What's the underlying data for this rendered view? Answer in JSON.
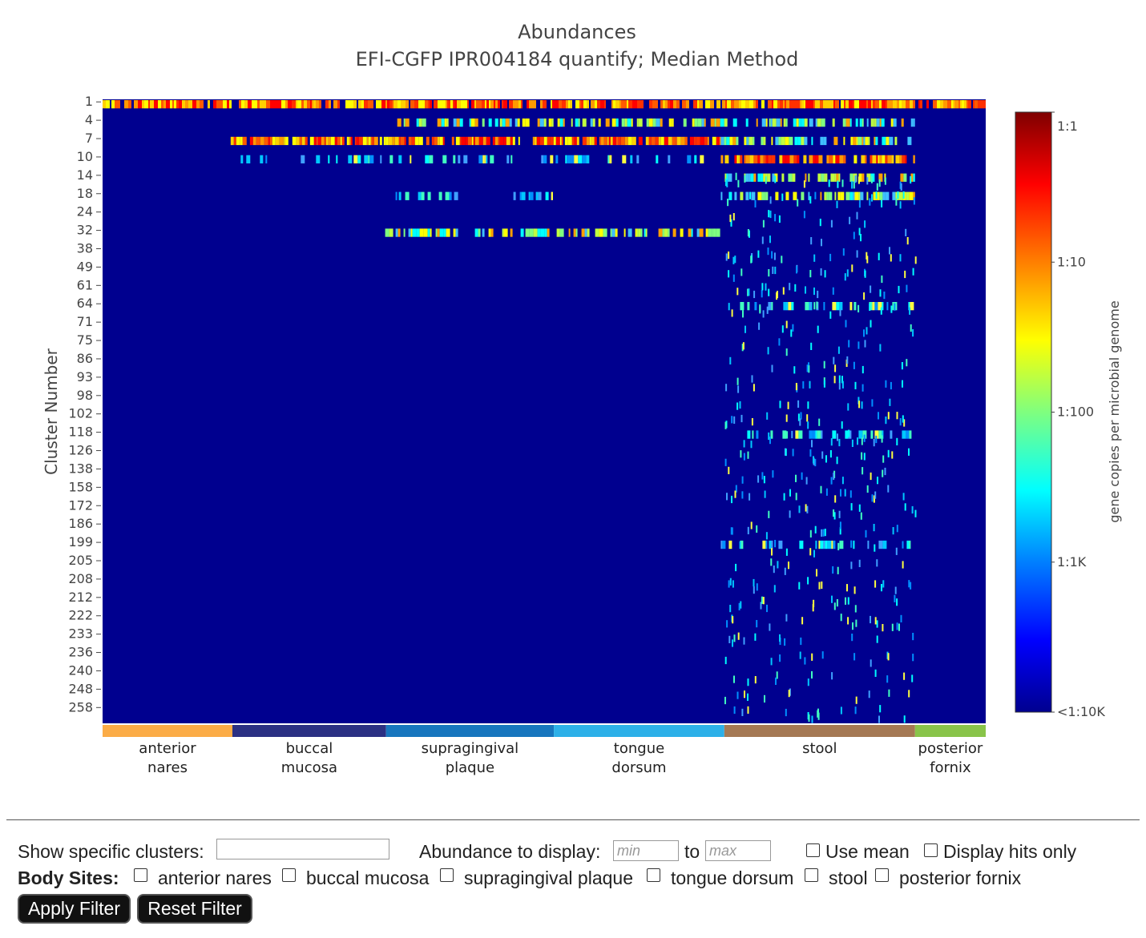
{
  "chart_data": {
    "type": "heatmap",
    "title": "Abundances",
    "subtitle": "EFI-CGFP IPR004184 quantify; Median Method",
    "ylabel": "Cluster Number",
    "y_tick_labels": [
      "1",
      "4",
      "7",
      "10",
      "14",
      "18",
      "24",
      "32",
      "38",
      "49",
      "61",
      "64",
      "71",
      "75",
      "86",
      "93",
      "98",
      "102",
      "118",
      "126",
      "138",
      "158",
      "172",
      "186",
      "199",
      "205",
      "208",
      "212",
      "222",
      "233",
      "236",
      "240",
      "248",
      "258"
    ],
    "colorbar": {
      "title": "gene copies per microbial genome",
      "ticks": [
        "1:1",
        "1:10",
        "1:100",
        "1:1K",
        "<1:10K"
      ],
      "tick_values": [
        1,
        0.1,
        0.01,
        0.001,
        0.0001
      ],
      "colorscale": "jet",
      "colors": [
        "#7f0000",
        "#ff0000",
        "#ff7f00",
        "#ffff00",
        "#7fff7f",
        "#00ffff",
        "#007fff",
        "#0000ff",
        "#00008f"
      ]
    },
    "background_color": "#00008f",
    "body_sites": [
      {
        "label": "anterior nares",
        "line1": "anterior",
        "line2": "nares",
        "color": "#fbac47",
        "start": 0.0,
        "end": 0.147
      },
      {
        "label": "buccal mucosa",
        "line1": "buccal",
        "line2": "mucosa",
        "color": "#2b3083",
        "start": 0.147,
        "end": 0.321
      },
      {
        "label": "supragingival plaque",
        "line1": "supragingival",
        "line2": "plaque",
        "color": "#1776be",
        "start": 0.321,
        "end": 0.511
      },
      {
        "label": "tongue dorsum",
        "line1": "tongue",
        "line2": "dorsum",
        "color": "#2db0e8",
        "start": 0.511,
        "end": 0.704
      },
      {
        "label": "stool",
        "line1": "stool",
        "line2": "",
        "color": "#a57954",
        "start": 0.704,
        "end": 0.92
      },
      {
        "label": "posterior fornix",
        "line1": "posterior",
        "line2": "fornix",
        "color": "#89c44a",
        "start": 0.92,
        "end": 1.0
      }
    ],
    "row_features": [
      {
        "cluster": "1",
        "segments": [
          [
            0.0,
            1.0,
            "high"
          ]
        ]
      },
      {
        "cluster": "4",
        "segments": [
          [
            0.33,
            0.92,
            "mid"
          ]
        ]
      },
      {
        "cluster": "7",
        "segments": [
          [
            0.145,
            0.7,
            "high"
          ],
          [
            0.7,
            0.92,
            "mid"
          ]
        ]
      },
      {
        "cluster": "10",
        "segments": [
          [
            0.15,
            0.7,
            "low"
          ],
          [
            0.7,
            0.92,
            "high"
          ]
        ]
      },
      {
        "cluster": "14",
        "segments": [
          [
            0.7,
            0.92,
            "mid"
          ]
        ]
      },
      {
        "cluster": "18",
        "segments": [
          [
            0.32,
            0.51,
            "low"
          ],
          [
            0.7,
            0.92,
            "mid"
          ]
        ]
      },
      {
        "cluster": "32",
        "segments": [
          [
            0.32,
            0.7,
            "mid"
          ]
        ]
      },
      {
        "cluster": "64",
        "segments": [
          [
            0.7,
            0.92,
            "low"
          ]
        ]
      },
      {
        "cluster": "118",
        "segments": [
          [
            0.7,
            0.92,
            "low"
          ]
        ]
      },
      {
        "cluster": "199",
        "segments": [
          [
            0.7,
            0.92,
            "low"
          ]
        ]
      }
    ]
  },
  "controls": {
    "show_clusters_label": "Show specific clusters:",
    "show_clusters_value": "",
    "abundance_label": "Abundance to display:",
    "min_placeholder": "min",
    "to_label": "to",
    "max_placeholder": "max",
    "use_mean_label": "Use mean",
    "use_mean_checked": false,
    "hits_only_label": "Display hits only",
    "hits_only_checked": false,
    "body_sites_label": "Body Sites:",
    "body_site_options": [
      "anterior nares",
      "buccal mucosa",
      "supragingival plaque",
      "tongue dorsum",
      "stool",
      "posterior fornix"
    ],
    "apply_label": "Apply Filter",
    "reset_label": "Reset Filter"
  }
}
